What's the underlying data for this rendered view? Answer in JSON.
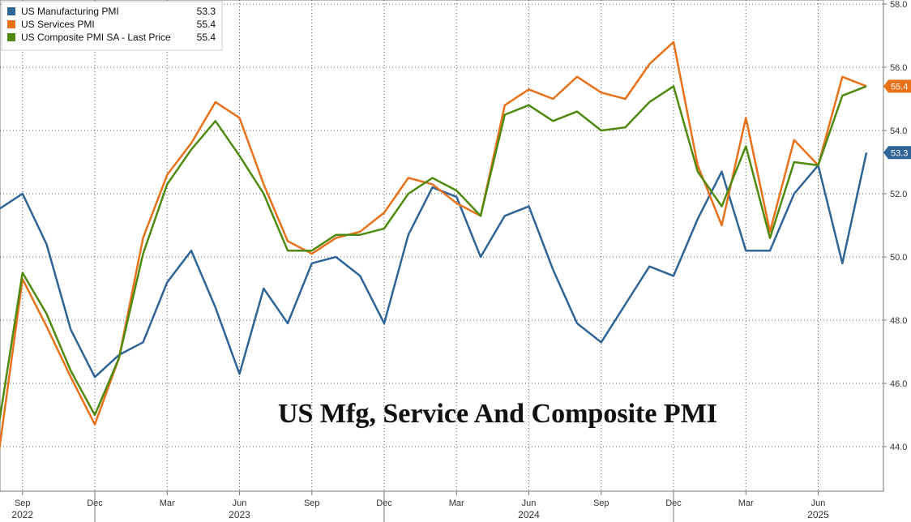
{
  "chart_data": {
    "type": "line",
    "title": "US Mfg, Service And Composite PMI",
    "xlabel": "",
    "ylabel": "",
    "ylim": [
      43,
      58
    ],
    "y_ticks": [
      "44.0",
      "46.0",
      "48.0",
      "50.0",
      "52.0",
      "54.0",
      "56.0",
      "58.0"
    ],
    "y_tick_values": [
      44,
      46,
      48,
      50,
      52,
      54,
      56,
      58
    ],
    "grid": true,
    "legend_position": "top-left",
    "y_axis_side": "right",
    "x": [
      "2022-08",
      "2022-09",
      "2022-10",
      "2022-11",
      "2022-12",
      "2023-01",
      "2023-02",
      "2023-03",
      "2023-04",
      "2023-05",
      "2023-06",
      "2023-07",
      "2023-08",
      "2023-09",
      "2023-10",
      "2023-11",
      "2023-12",
      "2024-01",
      "2024-02",
      "2024-03",
      "2024-04",
      "2024-05",
      "2024-06",
      "2024-07",
      "2024-08",
      "2024-09",
      "2024-10",
      "2024-11",
      "2024-12",
      "2025-01",
      "2025-02",
      "2025-03",
      "2025-04",
      "2025-05",
      "2025-06",
      "2025-07",
      "2025-08"
    ],
    "x_tick_labels": [
      {
        "x": "2022-09",
        "label": "Sep"
      },
      {
        "x": "2022-12",
        "label": "Dec"
      },
      {
        "x": "2023-03",
        "label": "Mar"
      },
      {
        "x": "2023-06",
        "label": "Jun"
      },
      {
        "x": "2023-09",
        "label": "Sep"
      },
      {
        "x": "2023-12",
        "label": "Dec"
      },
      {
        "x": "2024-03",
        "label": "Mar"
      },
      {
        "x": "2024-06",
        "label": "Jun"
      },
      {
        "x": "2024-09",
        "label": "Sep"
      },
      {
        "x": "2024-12",
        "label": "Dec"
      },
      {
        "x": "2025-03",
        "label": "Mar"
      },
      {
        "x": "2025-06",
        "label": "Jun"
      }
    ],
    "year_labels": [
      {
        "x": "2022-09",
        "label": "2022"
      },
      {
        "x": "2023-06",
        "label": "2023"
      },
      {
        "x": "2024-06",
        "label": "2024"
      },
      {
        "x": "2025-06",
        "label": "2025"
      }
    ],
    "year_boundaries": [
      "2022-12",
      "2023-12",
      "2024-12"
    ],
    "series": [
      {
        "name": "US Manufacturing PMI",
        "last_label": "53.3",
        "color": "#2f6497",
        "values": [
          51.5,
          52.0,
          50.4,
          47.7,
          46.2,
          46.9,
          47.3,
          49.2,
          50.2,
          48.4,
          46.3,
          49.0,
          47.9,
          49.8,
          50.0,
          49.4,
          47.9,
          50.7,
          52.2,
          51.9,
          50.0,
          51.3,
          51.6,
          49.6,
          47.9,
          47.3,
          48.5,
          49.7,
          49.4,
          51.2,
          52.7,
          50.2,
          50.2,
          52.0,
          52.9,
          49.8,
          53.3
        ]
      },
      {
        "name": "US Services PMI",
        "last_label": "55.4",
        "color": "#e8711a",
        "values": [
          43.7,
          49.3,
          47.8,
          46.2,
          44.7,
          46.8,
          50.6,
          52.6,
          53.6,
          54.9,
          54.4,
          52.3,
          50.5,
          50.1,
          50.6,
          50.8,
          51.4,
          52.5,
          52.3,
          51.7,
          51.3,
          54.8,
          55.3,
          55.0,
          55.7,
          55.2,
          55.0,
          56.1,
          56.8,
          52.9,
          51.0,
          54.4,
          50.8,
          53.7,
          52.9,
          55.7,
          55.4
        ]
      },
      {
        "name": "US Composite PMI SA - Last Price",
        "last_label": "55.4",
        "color": "#4f8a10",
        "values": [
          44.6,
          49.5,
          48.2,
          46.4,
          45.0,
          46.8,
          50.1,
          52.3,
          53.4,
          54.3,
          53.2,
          52.0,
          50.2,
          50.2,
          50.7,
          50.7,
          50.9,
          52.0,
          52.5,
          52.1,
          51.3,
          54.5,
          54.8,
          54.3,
          54.6,
          54.0,
          54.1,
          54.9,
          55.4,
          52.7,
          51.6,
          53.5,
          50.6,
          53.0,
          52.9,
          55.1,
          55.4
        ]
      }
    ]
  }
}
